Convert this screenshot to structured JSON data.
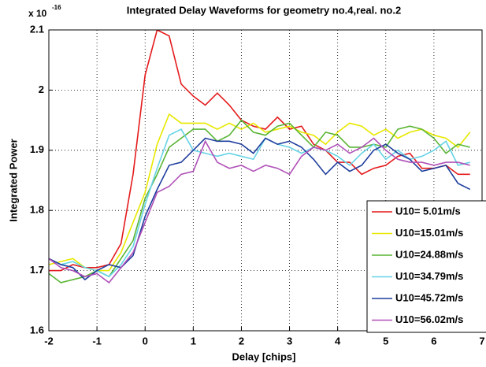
{
  "chart_data": {
    "type": "line",
    "title": "Integrated Delay Waveforms for geometry no.4,real. no.2",
    "y_multiplier": {
      "base": "x 10",
      "exponent": "-16"
    },
    "xlabel": "Delay [chips]",
    "ylabel": "Integrated Power",
    "x": [
      -2,
      -1.75,
      -1.5,
      -1.25,
      -1,
      -0.75,
      -0.5,
      -0.25,
      0,
      0.25,
      0.5,
      0.75,
      1,
      1.25,
      1.5,
      1.75,
      2,
      2.25,
      2.5,
      2.75,
      3,
      3.25,
      3.5,
      3.75,
      4,
      4.25,
      4.5,
      4.75,
      5,
      5.25,
      5.5,
      5.75,
      6,
      6.25,
      6.5,
      6.75
    ],
    "series": [
      {
        "name": "U10= 5.01m/s",
        "color": "#e41a1c",
        "values": [
          1.7,
          1.7,
          1.71,
          1.705,
          1.705,
          1.71,
          1.745,
          1.86,
          2.025,
          2.1,
          2.09,
          2.01,
          1.99,
          1.975,
          1.995,
          1.975,
          1.95,
          1.94,
          1.935,
          1.955,
          1.935,
          1.94,
          1.91,
          1.9,
          1.88,
          1.88,
          1.86,
          1.87,
          1.875,
          1.89,
          1.895,
          1.87,
          1.87,
          1.875,
          1.86,
          1.86
        ]
      },
      {
        "name": "U10=15.01m/s",
        "color": "#e8e800",
        "values": [
          1.71,
          1.715,
          1.72,
          1.705,
          1.7,
          1.7,
          1.73,
          1.78,
          1.83,
          1.91,
          1.96,
          1.945,
          1.945,
          1.945,
          1.935,
          1.945,
          1.935,
          1.945,
          1.93,
          1.935,
          1.94,
          1.93,
          1.925,
          1.91,
          1.93,
          1.945,
          1.94,
          1.925,
          1.935,
          1.92,
          1.93,
          1.935,
          1.925,
          1.92,
          1.905,
          1.93
        ]
      },
      {
        "name": "U10=24.88m/s",
        "color": "#5ab534",
        "values": [
          1.695,
          1.68,
          1.685,
          1.69,
          1.7,
          1.69,
          1.72,
          1.75,
          1.82,
          1.86,
          1.905,
          1.92,
          1.935,
          1.935,
          1.915,
          1.925,
          1.95,
          1.93,
          1.925,
          1.94,
          1.945,
          1.925,
          1.905,
          1.93,
          1.925,
          1.905,
          1.905,
          1.91,
          1.905,
          1.935,
          1.94,
          1.935,
          1.92,
          1.895,
          1.91,
          1.905
        ]
      },
      {
        "name": "U10=34.79m/s",
        "color": "#66d3e6",
        "values": [
          1.72,
          1.71,
          1.715,
          1.705,
          1.7,
          1.69,
          1.71,
          1.74,
          1.81,
          1.87,
          1.925,
          1.935,
          1.9,
          1.895,
          1.89,
          1.895,
          1.89,
          1.885,
          1.92,
          1.91,
          1.905,
          1.895,
          1.905,
          1.9,
          1.89,
          1.875,
          1.895,
          1.91,
          1.885,
          1.9,
          1.885,
          1.89,
          1.9,
          1.915,
          1.875,
          1.88
        ]
      },
      {
        "name": "U10=45.72m/s",
        "color": "#1f3e9e",
        "values": [
          1.72,
          1.71,
          1.705,
          1.685,
          1.7,
          1.71,
          1.705,
          1.725,
          1.79,
          1.835,
          1.875,
          1.88,
          1.9,
          1.92,
          1.915,
          1.915,
          1.91,
          1.895,
          1.92,
          1.91,
          1.915,
          1.905,
          1.885,
          1.86,
          1.88,
          1.865,
          1.875,
          1.9,
          1.91,
          1.895,
          1.885,
          1.865,
          1.87,
          1.875,
          1.845,
          1.835
        ]
      },
      {
        "name": "U10=56.02m/s",
        "color": "#b050b8",
        "values": [
          1.72,
          1.705,
          1.7,
          1.69,
          1.695,
          1.68,
          1.705,
          1.73,
          1.78,
          1.83,
          1.84,
          1.86,
          1.865,
          1.915,
          1.88,
          1.87,
          1.875,
          1.865,
          1.875,
          1.87,
          1.86,
          1.89,
          1.905,
          1.9,
          1.91,
          1.895,
          1.905,
          1.92,
          1.9,
          1.885,
          1.88,
          1.88,
          1.875,
          1.88,
          1.88,
          1.875
        ]
      }
    ],
    "xlim": [
      -2,
      7
    ],
    "ylim": [
      1.6,
      2.1
    ],
    "xticks": [
      -2,
      -1,
      0,
      1,
      2,
      3,
      4,
      5,
      6,
      7
    ],
    "yticks": [
      1.6,
      1.7,
      1.8,
      1.9,
      2,
      2.1
    ],
    "grid": true,
    "legend": "lower right"
  }
}
